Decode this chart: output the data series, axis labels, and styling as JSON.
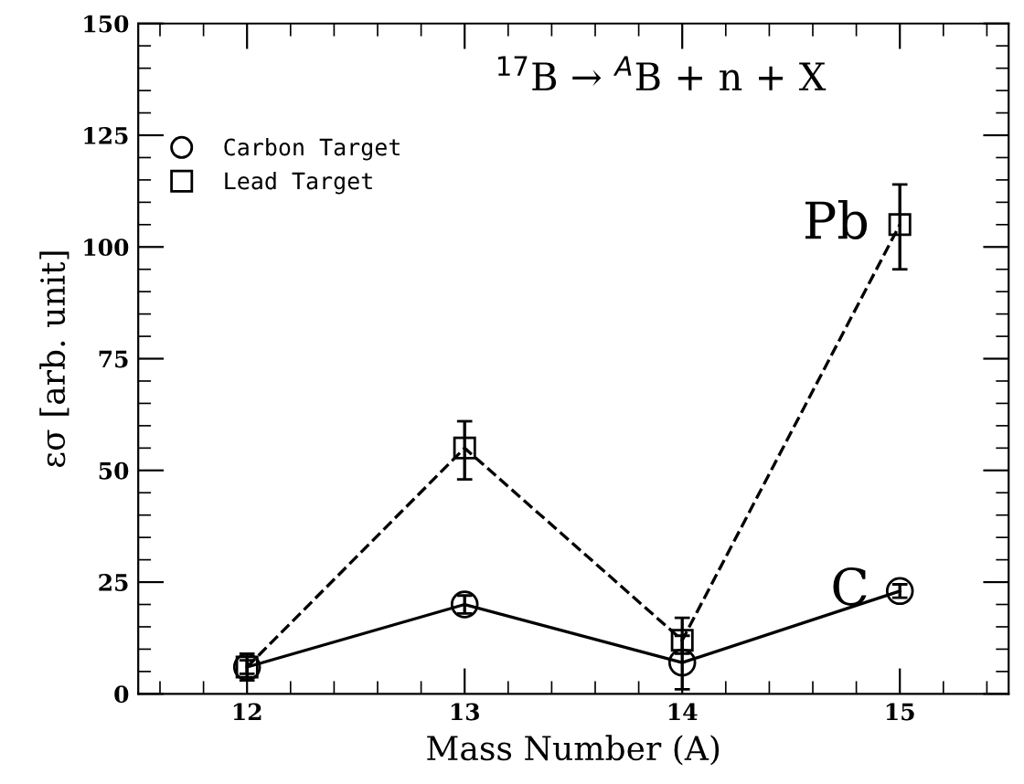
{
  "chart_data": {
    "type": "line",
    "x": [
      12,
      13,
      14,
      15
    ],
    "series": [
      {
        "name": "Carbon Target",
        "color": "#000000",
        "values": [
          6,
          20,
          7,
          23
        ],
        "errors": [
          1.5,
          2,
          6,
          1.5
        ],
        "marker": "circle",
        "line_style": "solid"
      },
      {
        "name": "Lead Target",
        "color": "#000000",
        "values": [
          6,
          55,
          12,
          105
        ],
        "errors": [
          3,
          [
            48,
            61
          ],
          [
            9,
            17
          ],
          [
            95,
            114
          ]
        ],
        "marker": "square",
        "line_style": "dashed"
      }
    ],
    "xlabel": "Mass Number (A)",
    "ylabel": "εσ [arb. unit]",
    "xlim": [
      11.5,
      15.5
    ],
    "xticks": [
      12,
      13,
      14,
      15
    ],
    "ylim": [
      0,
      150
    ],
    "yticks": [
      0,
      25,
      50,
      75,
      100,
      125,
      150
    ],
    "annotations": [
      {
        "text": "$^{17}$B → $^{A}$B + n + X"
      },
      {
        "text": "Pb",
        "x": 15,
        "y": 105
      },
      {
        "text": "C",
        "x": 15,
        "y": 23
      }
    ],
    "legend": "top left",
    "grid": false
  }
}
